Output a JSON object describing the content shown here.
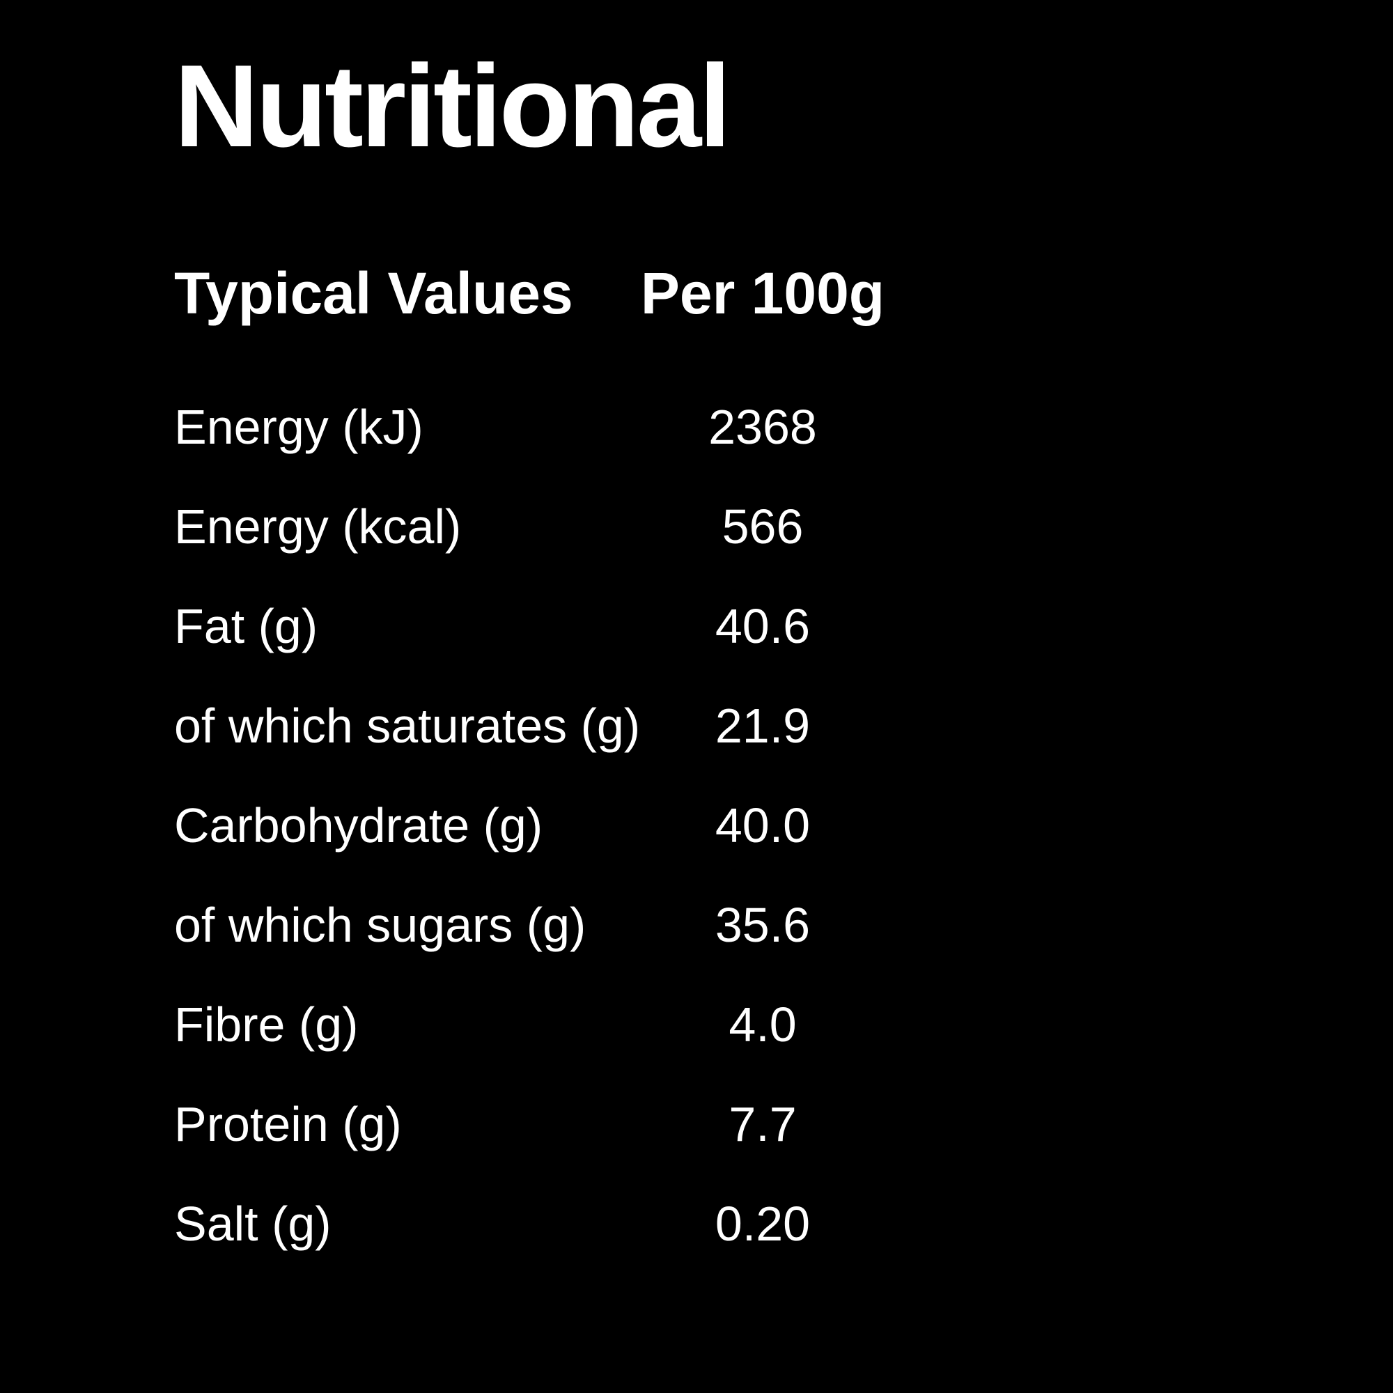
{
  "title": "Nutritional",
  "colors": {
    "background": "#000000",
    "text": "#ffffff"
  },
  "table": {
    "header": {
      "label": "Typical Values",
      "value": "Per 100g"
    },
    "rows": [
      {
        "label": "Energy (kJ)",
        "value": "2368"
      },
      {
        "label": "Energy (kcal)",
        "value": "566"
      },
      {
        "label": "Fat (g)",
        "value": "40.6"
      },
      {
        "label": "of which saturates (g)",
        "value": "21.9"
      },
      {
        "label": "Carbohydrate (g)",
        "value": "40.0"
      },
      {
        "label": "of which sugars (g)",
        "value": "35.6"
      },
      {
        "label": "Fibre (g)",
        "value": "4.0"
      },
      {
        "label": "Protein (g)",
        "value": "7.7"
      },
      {
        "label": "Salt (g)",
        "value": "0.20"
      }
    ]
  }
}
